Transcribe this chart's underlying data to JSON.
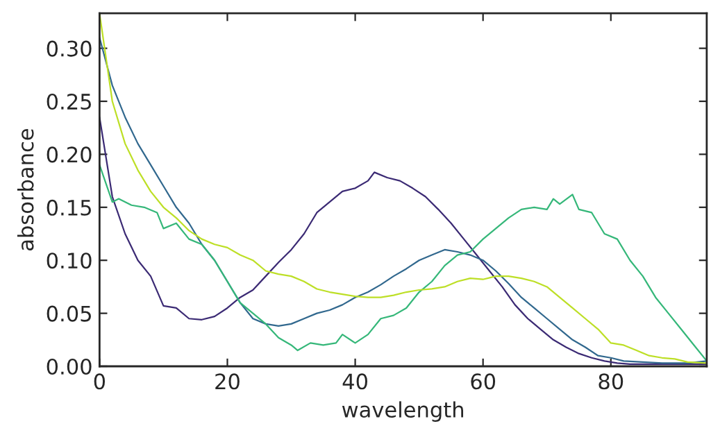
{
  "chart_data": {
    "type": "line",
    "xlabel": "wavelength",
    "ylabel": "absorbance",
    "xlim": [
      0,
      95
    ],
    "ylim": [
      0,
      0.333
    ],
    "xticks": [
      0,
      20,
      40,
      60,
      80
    ],
    "yticks": [
      {
        "value": 0,
        "label": "0.00"
      },
      {
        "value": 0.05,
        "label": "0.05"
      },
      {
        "value": 0.1,
        "label": "0.10"
      },
      {
        "value": 0.15,
        "label": "0.15"
      },
      {
        "value": 0.2,
        "label": "0.20"
      },
      {
        "value": 0.25,
        "label": "0.25"
      },
      {
        "value": 0.3,
        "label": "0.30"
      }
    ],
    "grid": false,
    "legend": false,
    "series": [
      {
        "color": "#3b2a74",
        "x": [
          0,
          2,
          4,
          6,
          8,
          10,
          12,
          14,
          16,
          18,
          20,
          22,
          24,
          26,
          28,
          30,
          32,
          34,
          36,
          38,
          40,
          42,
          43,
          45,
          47,
          49,
          51,
          53,
          55,
          57,
          59,
          61,
          63,
          65,
          67,
          69,
          71,
          73,
          75,
          77,
          79,
          81,
          83,
          85,
          87,
          90,
          95
        ],
        "values": [
          0.235,
          0.16,
          0.125,
          0.1,
          0.085,
          0.057,
          0.055,
          0.045,
          0.044,
          0.047,
          0.055,
          0.065,
          0.072,
          0.085,
          0.098,
          0.11,
          0.125,
          0.145,
          0.155,
          0.165,
          0.168,
          0.175,
          0.183,
          0.178,
          0.175,
          0.168,
          0.16,
          0.148,
          0.135,
          0.12,
          0.105,
          0.09,
          0.075,
          0.058,
          0.045,
          0.035,
          0.025,
          0.018,
          0.012,
          0.008,
          0.005,
          0.003,
          0.002,
          0.002,
          0.002,
          0.002,
          0.002
        ]
      },
      {
        "color": "#31688e",
        "x": [
          0,
          2,
          4,
          6,
          8,
          10,
          12,
          14,
          16,
          18,
          20,
          22,
          24,
          26,
          28,
          30,
          32,
          34,
          36,
          38,
          40,
          42,
          44,
          46,
          48,
          50,
          52,
          54,
          56,
          58,
          60,
          62,
          64,
          66,
          68,
          70,
          72,
          74,
          76,
          78,
          80,
          82,
          85,
          88,
          92,
          95
        ],
        "values": [
          0.31,
          0.265,
          0.235,
          0.21,
          0.19,
          0.17,
          0.15,
          0.135,
          0.115,
          0.1,
          0.08,
          0.06,
          0.045,
          0.04,
          0.038,
          0.04,
          0.045,
          0.05,
          0.053,
          0.058,
          0.065,
          0.07,
          0.077,
          0.085,
          0.092,
          0.1,
          0.105,
          0.11,
          0.108,
          0.105,
          0.1,
          0.09,
          0.078,
          0.065,
          0.055,
          0.045,
          0.035,
          0.025,
          0.018,
          0.01,
          0.008,
          0.005,
          0.004,
          0.003,
          0.003,
          0.005
        ]
      },
      {
        "color": "#35b779",
        "x": [
          0,
          2,
          3,
          5,
          7,
          9,
          10,
          12,
          14,
          16,
          18,
          20,
          22,
          24,
          26,
          28,
          30,
          31,
          33,
          35,
          37,
          38,
          40,
          42,
          44,
          46,
          48,
          50,
          52,
          54,
          56,
          58,
          60,
          62,
          64,
          66,
          68,
          70,
          71,
          72,
          74,
          75,
          77,
          79,
          81,
          83,
          85,
          87,
          89,
          91,
          93,
          95
        ],
        "values": [
          0.19,
          0.155,
          0.158,
          0.152,
          0.15,
          0.145,
          0.13,
          0.135,
          0.12,
          0.115,
          0.1,
          0.08,
          0.06,
          0.05,
          0.04,
          0.027,
          0.02,
          0.015,
          0.022,
          0.02,
          0.022,
          0.03,
          0.022,
          0.03,
          0.045,
          0.048,
          0.055,
          0.07,
          0.08,
          0.095,
          0.105,
          0.108,
          0.12,
          0.13,
          0.14,
          0.148,
          0.15,
          0.148,
          0.158,
          0.153,
          0.162,
          0.148,
          0.145,
          0.125,
          0.12,
          0.1,
          0.085,
          0.065,
          0.05,
          0.035,
          0.02,
          0.005
        ]
      },
      {
        "color": "#bddf26",
        "x": [
          0,
          2,
          4,
          6,
          8,
          10,
          12,
          14,
          16,
          18,
          20,
          22,
          24,
          26,
          28,
          30,
          32,
          34,
          36,
          38,
          40,
          42,
          44,
          46,
          48,
          50,
          52,
          54,
          56,
          58,
          60,
          62,
          64,
          66,
          68,
          70,
          72,
          74,
          76,
          78,
          80,
          82,
          84,
          86,
          88,
          90,
          92,
          95
        ],
        "values": [
          0.333,
          0.25,
          0.21,
          0.185,
          0.165,
          0.15,
          0.14,
          0.128,
          0.12,
          0.115,
          0.112,
          0.105,
          0.1,
          0.09,
          0.087,
          0.085,
          0.08,
          0.073,
          0.07,
          0.068,
          0.066,
          0.065,
          0.065,
          0.067,
          0.07,
          0.072,
          0.073,
          0.075,
          0.08,
          0.083,
          0.082,
          0.085,
          0.085,
          0.083,
          0.08,
          0.075,
          0.065,
          0.055,
          0.045,
          0.035,
          0.022,
          0.02,
          0.015,
          0.01,
          0.008,
          0.007,
          0.004,
          0.003
        ]
      }
    ]
  }
}
